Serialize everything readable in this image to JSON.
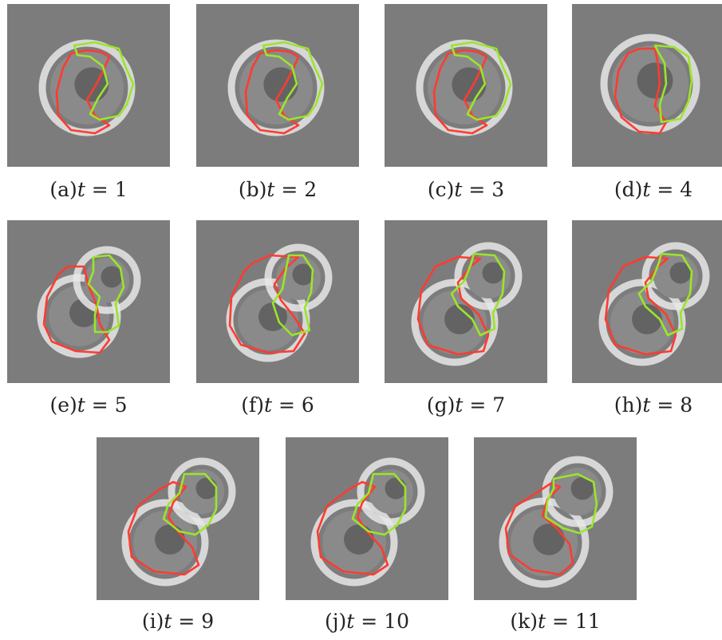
{
  "figure": {
    "panels": [
      {
        "label": "(a)",
        "t_text": "t",
        "eq_text": " = 1",
        "stage": 0
      },
      {
        "label": "(b)",
        "t_text": "t",
        "eq_text": " = 2",
        "stage": 0
      },
      {
        "label": "(c)",
        "t_text": "t",
        "eq_text": " = 3",
        "stage": 0
      },
      {
        "label": "(d)",
        "t_text": "t",
        "eq_text": " = 4",
        "stage": 1
      },
      {
        "label": "(e)",
        "t_text": "t",
        "eq_text": " = 5",
        "stage": 2
      },
      {
        "label": "(f)",
        "t_text": "t",
        "eq_text": " = 6",
        "stage": 3
      },
      {
        "label": "(g)",
        "t_text": "t",
        "eq_text": " = 7",
        "stage": 4
      },
      {
        "label": "(h)",
        "t_text": "t",
        "eq_text": " = 8",
        "stage": 4
      },
      {
        "label": "(i)",
        "t_text": "t",
        "eq_text": " = 9",
        "stage": 5
      },
      {
        "label": "(j)",
        "t_text": "t",
        "eq_text": " = 10",
        "stage": 5
      },
      {
        "label": "(k)",
        "t_text": "t",
        "eq_text": " = 11",
        "stage": 6
      }
    ],
    "colors": {
      "background": "#7c7c7c",
      "cell_halo": "#e8e8e8",
      "cell_body": "#8a8a8a",
      "nucleus": "#555555",
      "red_contour": "#ff3b30",
      "green_contour": "#9be52a"
    }
  }
}
